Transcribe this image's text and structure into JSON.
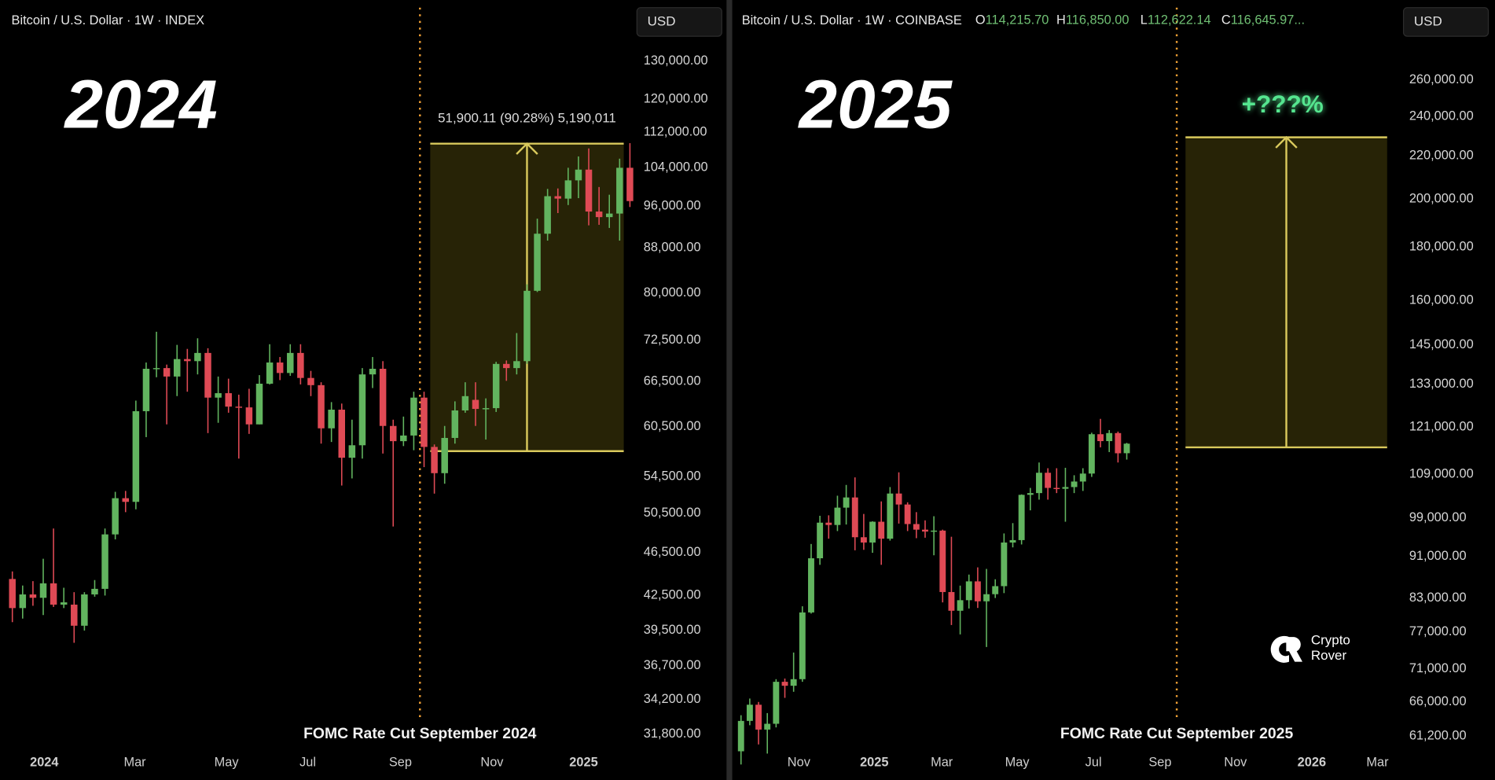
{
  "chart_data": [
    {
      "type": "candlestick",
      "title": "Bitcoin / U.S. Dollar · 1W · INDEX",
      "currency": "USD",
      "year_label": "2024",
      "log_scale": true,
      "grid": false,
      "up_color": "#62b45f",
      "down_color": "#df4a55",
      "xlim": [
        -1.2,
        60.4
      ],
      "xticks": [
        {
          "value": 3.1,
          "label": "2024"
        },
        {
          "value": 11.9,
          "label": "Mar"
        },
        {
          "value": 20.8,
          "label": "May"
        },
        {
          "value": 28.7,
          "label": "Jul"
        },
        {
          "value": 37.7,
          "label": "Sep"
        },
        {
          "value": 46.6,
          "label": "Nov"
        },
        {
          "value": 55.5,
          "label": "2025"
        }
      ],
      "ylim": [
        30860,
        136400
      ],
      "yticks": [
        {
          "value": 130000,
          "label": "130,000.00"
        },
        {
          "value": 120000,
          "label": "120,000.00"
        },
        {
          "value": 112000,
          "label": "112,000.00"
        },
        {
          "value": 104000,
          "label": "104,000.00"
        },
        {
          "value": 96000,
          "label": "96,000.00"
        },
        {
          "value": 88000,
          "label": "88,000.00"
        },
        {
          "value": 80000,
          "label": "80,000.00"
        },
        {
          "value": 72500,
          "label": "72,500.00"
        },
        {
          "value": 66500,
          "label": "66,500.00"
        },
        {
          "value": 60500,
          "label": "60,500.00"
        },
        {
          "value": 54500,
          "label": "54,500.00"
        },
        {
          "value": 50500,
          "label": "50,500.00"
        },
        {
          "value": 46500,
          "label": "46,500.00"
        },
        {
          "value": 42500,
          "label": "42,500.00"
        },
        {
          "value": 39500,
          "label": "39,500.00"
        },
        {
          "value": 36700,
          "label": "36,700.00"
        },
        {
          "value": 34200,
          "label": "34,200.00"
        },
        {
          "value": 31800,
          "label": "31,800.00"
        }
      ],
      "candles": [
        [
          44000,
          44700,
          40200,
          41400
        ],
        [
          41400,
          43400,
          40500,
          42600
        ],
        [
          42600,
          43800,
          41600,
          42300
        ],
        [
          42300,
          45900,
          40800,
          43600
        ],
        [
          43600,
          48900,
          41500,
          41700
        ],
        [
          41700,
          43200,
          41400,
          41900
        ],
        [
          41700,
          42800,
          38500,
          39900
        ],
        [
          39900,
          42800,
          39500,
          42600
        ],
        [
          42600,
          43900,
          42400,
          43100
        ],
        [
          43100,
          48900,
          42500,
          48300
        ],
        [
          48300,
          52800,
          47800,
          52100
        ],
        [
          52100,
          52900,
          50600,
          51700
        ],
        [
          51700,
          63900,
          50900,
          62500
        ],
        [
          62500,
          69200,
          59200,
          68300
        ],
        [
          68300,
          73800,
          67100,
          68400
        ],
        [
          68400,
          68900,
          60800,
          67200
        ],
        [
          67200,
          71800,
          64500,
          69700
        ],
        [
          69700,
          71200,
          65100,
          69400
        ],
        [
          69400,
          72800,
          67500,
          70600
        ],
        [
          70600,
          71300,
          59700,
          64300
        ],
        [
          64300,
          67200,
          61000,
          64900
        ],
        [
          64900,
          66900,
          62300,
          63100
        ],
        [
          63100,
          64700,
          56600,
          63000
        ],
        [
          63000,
          65500,
          59600,
          60800
        ],
        [
          60800,
          67400,
          60800,
          66200
        ],
        [
          66200,
          71900,
          66100,
          69200
        ],
        [
          69200,
          70000,
          66700,
          67700
        ],
        [
          67700,
          71900,
          67300,
          70600
        ],
        [
          70600,
          71900,
          66100,
          67000
        ],
        [
          67000,
          68000,
          64500,
          66000
        ],
        [
          66000,
          66400,
          58400,
          60300
        ],
        [
          60300,
          63700,
          58600,
          62700
        ],
        [
          62700,
          63500,
          53500,
          56700
        ],
        [
          56700,
          61400,
          54300,
          58200
        ],
        [
          58200,
          68400,
          56600,
          67500
        ],
        [
          67500,
          70000,
          65600,
          68300
        ],
        [
          68300,
          69400,
          57200,
          60600
        ],
        [
          60600,
          61400,
          49100,
          58700
        ],
        [
          58700,
          61800,
          58100,
          59400
        ],
        [
          59400,
          65100,
          57600,
          64300
        ],
        [
          64300,
          65100,
          55600,
          58000
        ],
        [
          58000,
          58300,
          52600,
          54900
        ],
        [
          54900,
          60600,
          53700,
          59100
        ],
        [
          59100,
          63800,
          58400,
          62600
        ],
        [
          62600,
          66400,
          62300,
          64500
        ],
        [
          64000,
          66400,
          60600,
          62800
        ],
        [
          62800,
          64200,
          58900,
          62900
        ],
        [
          62900,
          69300,
          62400,
          69000
        ],
        [
          69000,
          69500,
          66600,
          68400
        ],
        [
          68400,
          73600,
          67500,
          69400
        ],
        [
          69400,
          81500,
          69000,
          80400
        ],
        [
          80400,
          93500,
          80200,
          90600
        ],
        [
          90600,
          99500,
          89300,
          98000
        ],
        [
          98000,
          99600,
          94600,
          97500
        ],
        [
          97500,
          104000,
          96200,
          101300
        ],
        [
          101300,
          106500,
          97600,
          103600
        ],
        [
          103600,
          108300,
          92200,
          94900
        ],
        [
          94900,
          99900,
          92300,
          93800
        ],
        [
          93800,
          98300,
          91700,
          94500
        ],
        [
          94500,
          106000,
          89300,
          104000
        ],
        [
          104000,
          109500,
          95800,
          97000
        ]
      ],
      "range_box": {
        "x": [
          40.6,
          59.4
        ],
        "low": 57488,
        "high": 109388.11,
        "label": "51,900.11 (90.28%) 5,190,011"
      },
      "event": {
        "x": 39.6,
        "label": "FOMC Rate Cut September 2024"
      }
    },
    {
      "type": "candlestick",
      "title": "Bitcoin / U.S. Dollar · 1W · COINBASE",
      "currency": "USD",
      "year_label": "2025",
      "log_scale": true,
      "grid": false,
      "up_color": "#62b45f",
      "down_color": "#df4a55",
      "last_candle_labels": {
        "keys": [
          "O",
          "H",
          "L",
          "C"
        ],
        "values": [
          "114,215.70",
          "116,850.00",
          "112,622.14",
          "116,645.97..."
        ]
      },
      "xlim": [
        -1.0,
        74.8
      ],
      "xticks": [
        {
          "value": 6.6,
          "label": "Nov"
        },
        {
          "value": 15.2,
          "label": "2025"
        },
        {
          "value": 22.9,
          "label": "Mar"
        },
        {
          "value": 31.5,
          "label": "May"
        },
        {
          "value": 40.2,
          "label": "Jul"
        },
        {
          "value": 47.8,
          "label": "Sep"
        },
        {
          "value": 56.4,
          "label": "Nov"
        },
        {
          "value": 65.1,
          "label": "2026"
        },
        {
          "value": 72.6,
          "label": "Mar"
        }
      ],
      "ylim": [
        59560,
        285200
      ],
      "yticks": [
        {
          "value": 260000,
          "label": "260,000.00"
        },
        {
          "value": 240000,
          "label": "240,000.00"
        },
        {
          "value": 220000,
          "label": "220,000.00"
        },
        {
          "value": 200000,
          "label": "200,000.00"
        },
        {
          "value": 180000,
          "label": "180,000.00"
        },
        {
          "value": 160000,
          "label": "160,000.00"
        },
        {
          "value": 145000,
          "label": "145,000.00"
        },
        {
          "value": 133000,
          "label": "133,000.00"
        },
        {
          "value": 121000,
          "label": "121,000.00"
        },
        {
          "value": 109000,
          "label": "109,000.00"
        },
        {
          "value": 99000,
          "label": "99,000.00"
        },
        {
          "value": 91000,
          "label": "91,000.00"
        },
        {
          "value": 83000,
          "label": "83,000.00"
        },
        {
          "value": 77000,
          "label": "77,000.00"
        },
        {
          "value": 71000,
          "label": "71,000.00"
        },
        {
          "value": 66000,
          "label": "66,000.00"
        },
        {
          "value": 61200,
          "label": "61,200.00"
        }
      ],
      "candles": [
        [
          59200,
          64100,
          57500,
          63300
        ],
        [
          63300,
          66500,
          62700,
          65600
        ],
        [
          65600,
          66000,
          60100,
          62100
        ],
        [
          62100,
          64400,
          58900,
          62900
        ],
        [
          62900,
          69400,
          62400,
          69000
        ],
        [
          69000,
          69500,
          66600,
          68400
        ],
        [
          68400,
          73600,
          67500,
          69400
        ],
        [
          69400,
          81500,
          69000,
          80400
        ],
        [
          80400,
          93500,
          80200,
          90600
        ],
        [
          90600,
          99500,
          89300,
          98000
        ],
        [
          98000,
          99600,
          94600,
          97500
        ],
        [
          97500,
          104000,
          96200,
          101300
        ],
        [
          101300,
          106500,
          97600,
          103600
        ],
        [
          103600,
          108300,
          92200,
          94900
        ],
        [
          94900,
          99900,
          92300,
          93800
        ],
        [
          93800,
          98300,
          91700,
          98200
        ],
        [
          98200,
          102700,
          89300,
          94600
        ],
        [
          94600,
          106000,
          94200,
          104500
        ],
        [
          104500,
          109500,
          97800,
          102000
        ],
        [
          102000,
          102500,
          96200,
          97700
        ],
        [
          97700,
          100300,
          94700,
          96500
        ],
        [
          96500,
          98500,
          94800,
          96100
        ],
        [
          96100,
          99400,
          91200,
          96300
        ],
        [
          96300,
          96500,
          82200,
          84100
        ],
        [
          84100,
          95000,
          78200,
          80700
        ],
        [
          80700,
          85300,
          76600,
          82600
        ],
        [
          82600,
          87400,
          81100,
          86100
        ],
        [
          86100,
          88800,
          81200,
          82400
        ],
        [
          82400,
          88500,
          74500,
          83700
        ],
        [
          83700,
          86500,
          83000,
          85200
        ],
        [
          85200,
          95700,
          83900,
          93800
        ],
        [
          93800,
          97900,
          92800,
          94300
        ],
        [
          94300,
          104300,
          93400,
          104200
        ],
        [
          104200,
          105800,
          100700,
          104600
        ],
        [
          104600,
          111900,
          103100,
          109400
        ],
        [
          109400,
          110500,
          103100,
          105800
        ],
        [
          105800,
          110500,
          104600,
          105600
        ],
        [
          105600,
          110600,
          98200,
          106000
        ],
        [
          106000,
          108800,
          104600,
          107300
        ],
        [
          107300,
          110500,
          105100,
          109200
        ],
        [
          109200,
          119500,
          108400,
          119100
        ],
        [
          119100,
          123200,
          115700,
          117300
        ],
        [
          117300,
          120200,
          114500,
          119400
        ],
        [
          119400,
          119800,
          111900,
          114200
        ],
        [
          114215.7,
          116850,
          112622.14,
          116645.97
        ]
      ],
      "range_box": {
        "x": [
          50.7,
          73.7
        ],
        "low": 115700,
        "high": 229200,
        "label": "+???%"
      },
      "event": {
        "x": 49.7,
        "label": "FOMC Rate Cut September 2025"
      },
      "watermark": [
        "Crypto",
        "Rover"
      ]
    }
  ]
}
